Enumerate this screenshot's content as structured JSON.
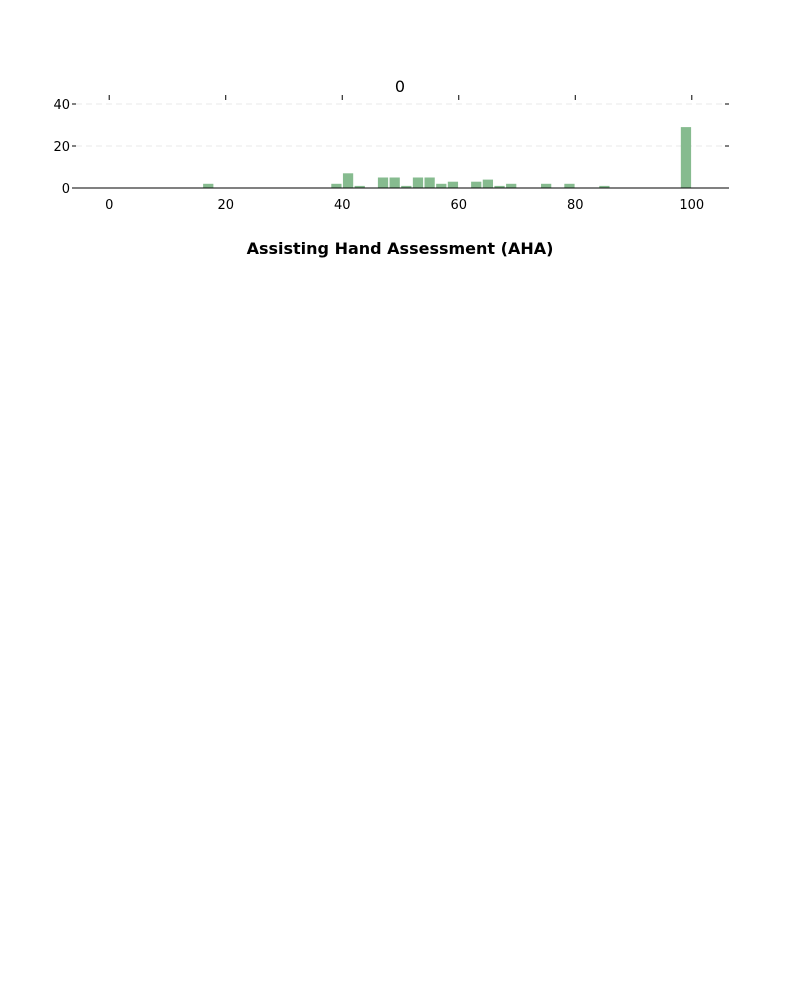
{
  "chart_data": {
    "type": "bar",
    "title": "0",
    "xlabel": "Assisting Hand Assessment (AHA)",
    "ylabel": "",
    "xlim": [
      -5.7,
      105.7
    ],
    "ylim": [
      0,
      40
    ],
    "xticks": [
      0,
      20,
      40,
      60,
      80,
      100
    ],
    "yticks": [
      0,
      20,
      40
    ],
    "grid": "y-dashed",
    "bar_color": "#86bb8f",
    "bin_width": 2,
    "bins": [
      {
        "x": 17,
        "value": 2
      },
      {
        "x": 39,
        "value": 2
      },
      {
        "x": 41,
        "value": 7
      },
      {
        "x": 43,
        "value": 1
      },
      {
        "x": 47,
        "value": 5
      },
      {
        "x": 49,
        "value": 5
      },
      {
        "x": 51,
        "value": 1
      },
      {
        "x": 53,
        "value": 5
      },
      {
        "x": 55,
        "value": 5
      },
      {
        "x": 57,
        "value": 2
      },
      {
        "x": 59,
        "value": 3
      },
      {
        "x": 63,
        "value": 3
      },
      {
        "x": 65,
        "value": 4
      },
      {
        "x": 67,
        "value": 1
      },
      {
        "x": 69,
        "value": 2
      },
      {
        "x": 75,
        "value": 2
      },
      {
        "x": 79,
        "value": 2
      },
      {
        "x": 85,
        "value": 1
      },
      {
        "x": 99,
        "value": 29
      }
    ]
  }
}
